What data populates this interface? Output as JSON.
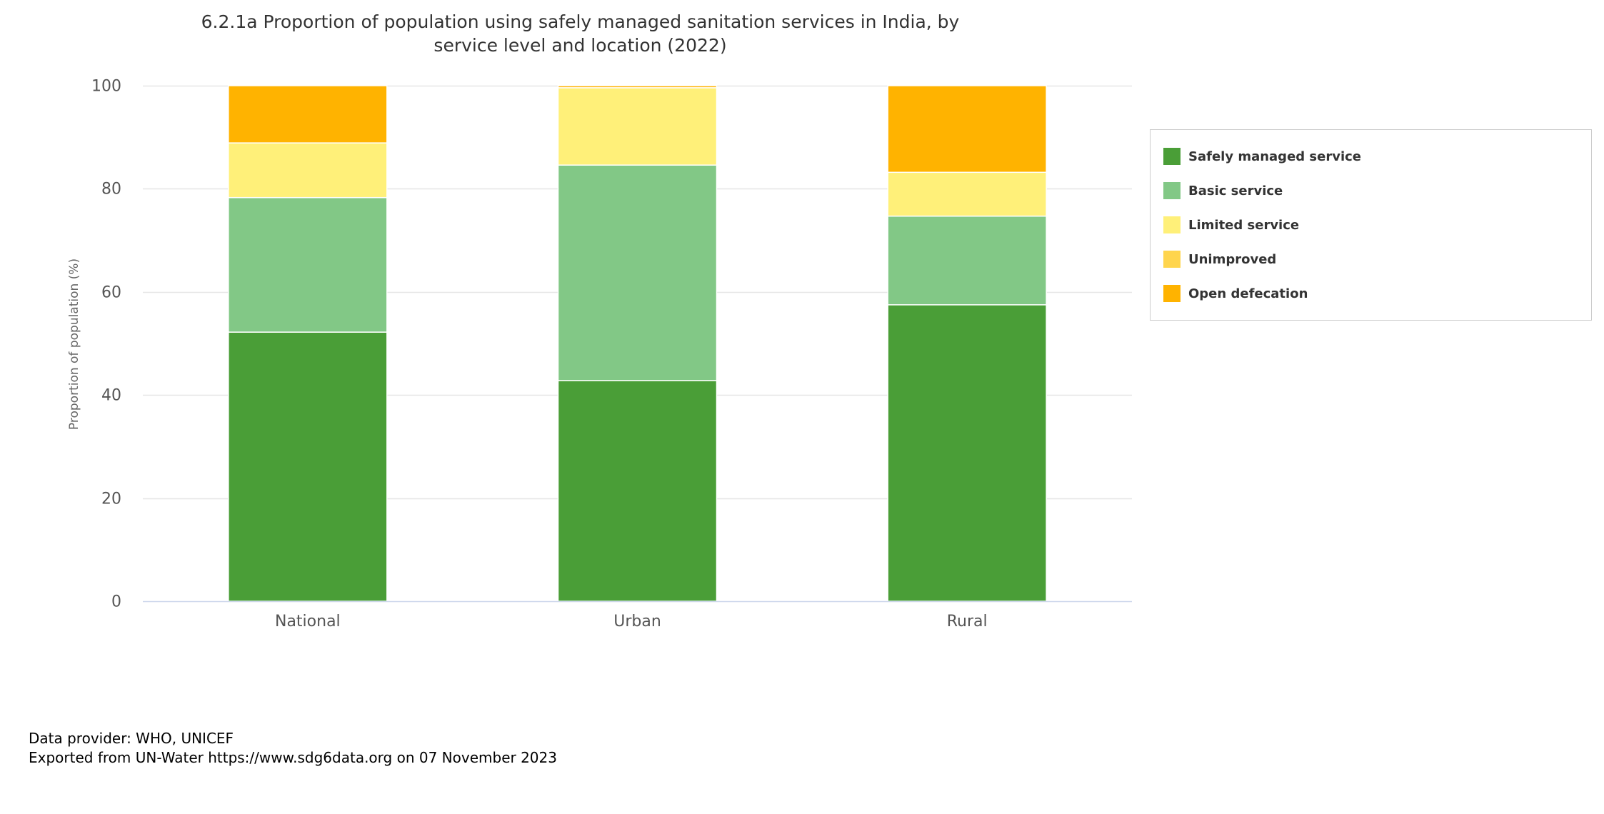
{
  "chart_data": {
    "type": "bar",
    "stacked": true,
    "title": "6.2.1a Proportion of population using safely managed sanitation services in India, by service level and location (2022)",
    "title_lines": [
      "6.2.1a Proportion of population using safely managed sanitation services in India, by",
      "service level and location (2022)"
    ],
    "xlabel": "",
    "ylabel": "Proportion of population (%)",
    "ylim": [
      0,
      100
    ],
    "yticks": [
      "0",
      "20",
      "40",
      "60",
      "80",
      "100"
    ],
    "grid": true,
    "legend_position": "right",
    "categories": [
      "National",
      "Urban",
      "Rural"
    ],
    "series": [
      {
        "name": "Safely managed service",
        "color": "#4a9e37",
        "values": [
          52.2,
          42.8,
          57.5
        ]
      },
      {
        "name": "Basic service",
        "color": "#82c886",
        "values": [
          26.1,
          41.8,
          17.2
        ]
      },
      {
        "name": "Limited service",
        "color": "#fff079",
        "values": [
          10.6,
          15.0,
          8.5
        ]
      },
      {
        "name": "Unimproved",
        "color": "#ffd54d",
        "values": [
          0,
          0,
          0
        ]
      },
      {
        "name": "Open defecation",
        "color": "#ffb300",
        "values": [
          11.1,
          0.4,
          16.8
        ]
      }
    ]
  },
  "footer": {
    "provider": "Data provider: WHO, UNICEF",
    "export": "Exported from UN-Water https://www.sdg6data.org on 07 November 2023"
  }
}
